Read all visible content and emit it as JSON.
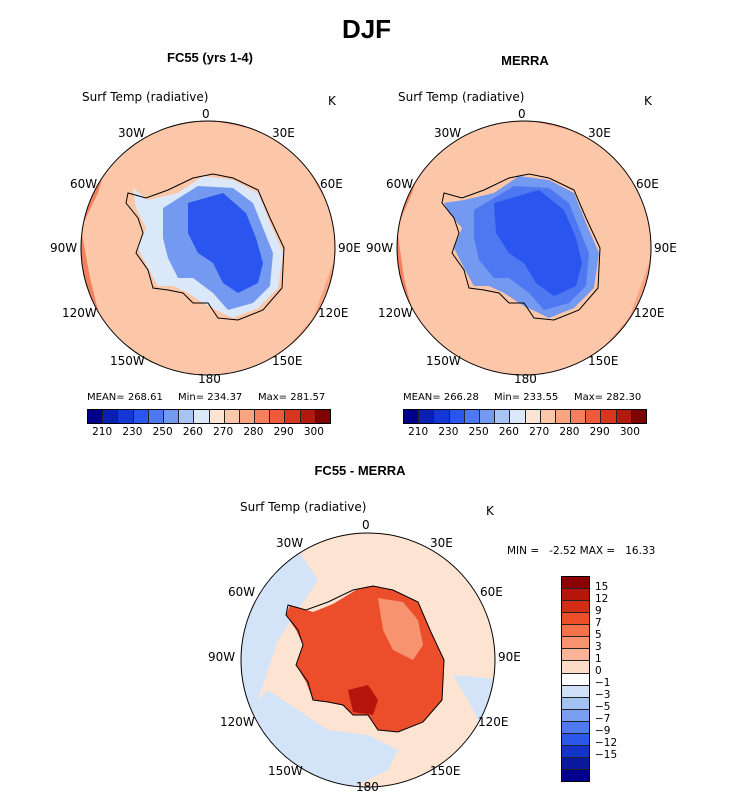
{
  "page": {
    "title": "DJF"
  },
  "panels": [
    {
      "title": "FC55 (yrs 1-4)",
      "variable": "Surf Temp (radiative)",
      "unit": "K",
      "stats": {
        "mean": "MEAN= 268.61",
        "min": "Min= 234.37",
        "max": "Max= 281.57"
      }
    },
    {
      "title": "MERRA",
      "variable": "Surf Temp (radiative)",
      "unit": "K",
      "stats": {
        "mean": "MEAN= 266.28",
        "min": "Min= 233.55",
        "max": "Max= 282.30"
      }
    },
    {
      "title": "FC55 - MERRA",
      "variable": "Surf Temp (radiative)",
      "unit": "K",
      "minmax": "MIN =   -2.52 MAX =   16.33"
    }
  ],
  "longitude_labels": {
    "lon0": "0",
    "lon30e": "30E",
    "lon60e": "60E",
    "lon90e": "90E",
    "lon120e": "120E",
    "lon150e": "150E",
    "lon180": "180",
    "lon150w": "150W",
    "lon120w": "120W",
    "lon90w": "90W",
    "lon60w": "60W",
    "lon30w": "30W"
  },
  "temp_colorbar": {
    "colors": [
      "#00008b",
      "#0a1fb5",
      "#1438d6",
      "#2a55ef",
      "#4d78f2",
      "#7399f0",
      "#a8c4f2",
      "#dbe8fa",
      "#fde3d2",
      "#fcc6a8",
      "#f9a582",
      "#f4805e",
      "#ee5a3a",
      "#d9361e",
      "#b21a0e",
      "#7c0504"
    ],
    "ticks": [
      "210",
      "230",
      "250",
      "260",
      "270",
      "280",
      "290",
      "300"
    ]
  },
  "diff_colorbar": {
    "colors": [
      "#8b0000",
      "#b5150a",
      "#d42d17",
      "#ec4d2a",
      "#f4714a",
      "#f7936e",
      "#f9b397",
      "#fcdcc7",
      "#ffffff",
      "#cfe0f7",
      "#a3c2f2",
      "#7a9ff0",
      "#4f79ef",
      "#2b57ea",
      "#1333cb",
      "#0a1a9c",
      "#00008b"
    ],
    "ticks": [
      "15",
      "12",
      "9",
      "7",
      "5",
      "3",
      "1",
      "0",
      "-1",
      "-3",
      "-5",
      "-7",
      "-9",
      "-12",
      "-15"
    ]
  }
}
